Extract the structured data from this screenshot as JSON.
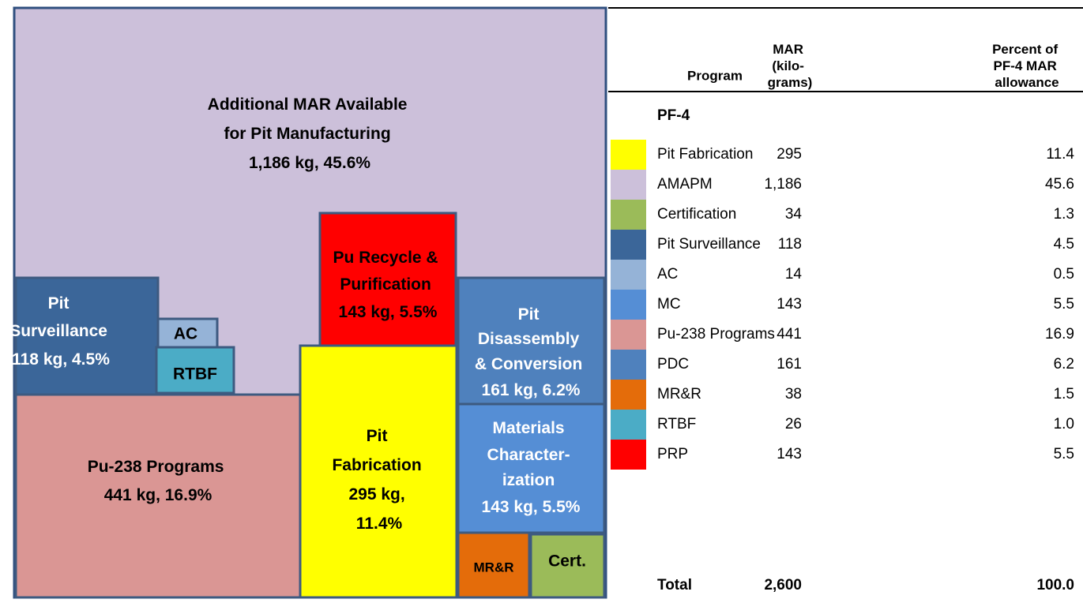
{
  "treemap": {
    "boxes": [
      {
        "lines": [
          "Additional MAR Available",
          "for Pit Manufacturing",
          "1,186 kg, 45.6%"
        ]
      },
      {
        "lines": [
          "Pit",
          "Surveillance",
          "118 kg, 4.5%"
        ]
      },
      {
        "lines": [
          "AC"
        ]
      },
      {
        "lines": [
          "RTBF"
        ]
      },
      {
        "lines": [
          "Pu-238 Programs",
          "441 kg, 16.9%"
        ]
      },
      {
        "lines": [
          "Pit",
          "Fabrication",
          "295 kg,",
          "11.4%"
        ]
      },
      {
        "lines": [
          "Pu Recycle &",
          "Purification",
          "143 kg, 5.5%"
        ]
      },
      {
        "lines": [
          "Pit",
          "Disassembly",
          "& Conversion",
          "161 kg, 6.2%"
        ]
      },
      {
        "lines": [
          "Materials",
          "Character-",
          "ization",
          "143 kg, 5.5%"
        ]
      },
      {
        "lines": [
          "MR&R"
        ]
      },
      {
        "lines": [
          "Cert."
        ]
      }
    ]
  },
  "table": {
    "headers": [
      [
        "Program"
      ],
      [
        "MAR",
        "(kilo-",
        "grams)"
      ],
      [
        "Percent of",
        "PF-4 MAR",
        "allowance"
      ]
    ],
    "section": "PF-4",
    "rows": [
      [
        "Pit Fabrication",
        "295",
        "11.4"
      ],
      [
        "AMAPM",
        "1,186",
        "45.6"
      ],
      [
        "Certification",
        "34",
        "1.3"
      ],
      [
        "Pit Surveillance",
        "118",
        "4.5"
      ],
      [
        "AC",
        "14",
        "0.5"
      ],
      [
        "MC",
        "143",
        "5.5"
      ],
      [
        "Pu-238 Programs",
        "441",
        "16.9"
      ],
      [
        "PDC",
        "161",
        "6.2"
      ],
      [
        "MR&R",
        "38",
        "1.5"
      ],
      [
        "RTBF",
        "26",
        "1.0"
      ],
      [
        "PRP",
        "143",
        "5.5"
      ]
    ],
    "total": [
      "Total",
      "2,600",
      "100.0"
    ]
  }
}
